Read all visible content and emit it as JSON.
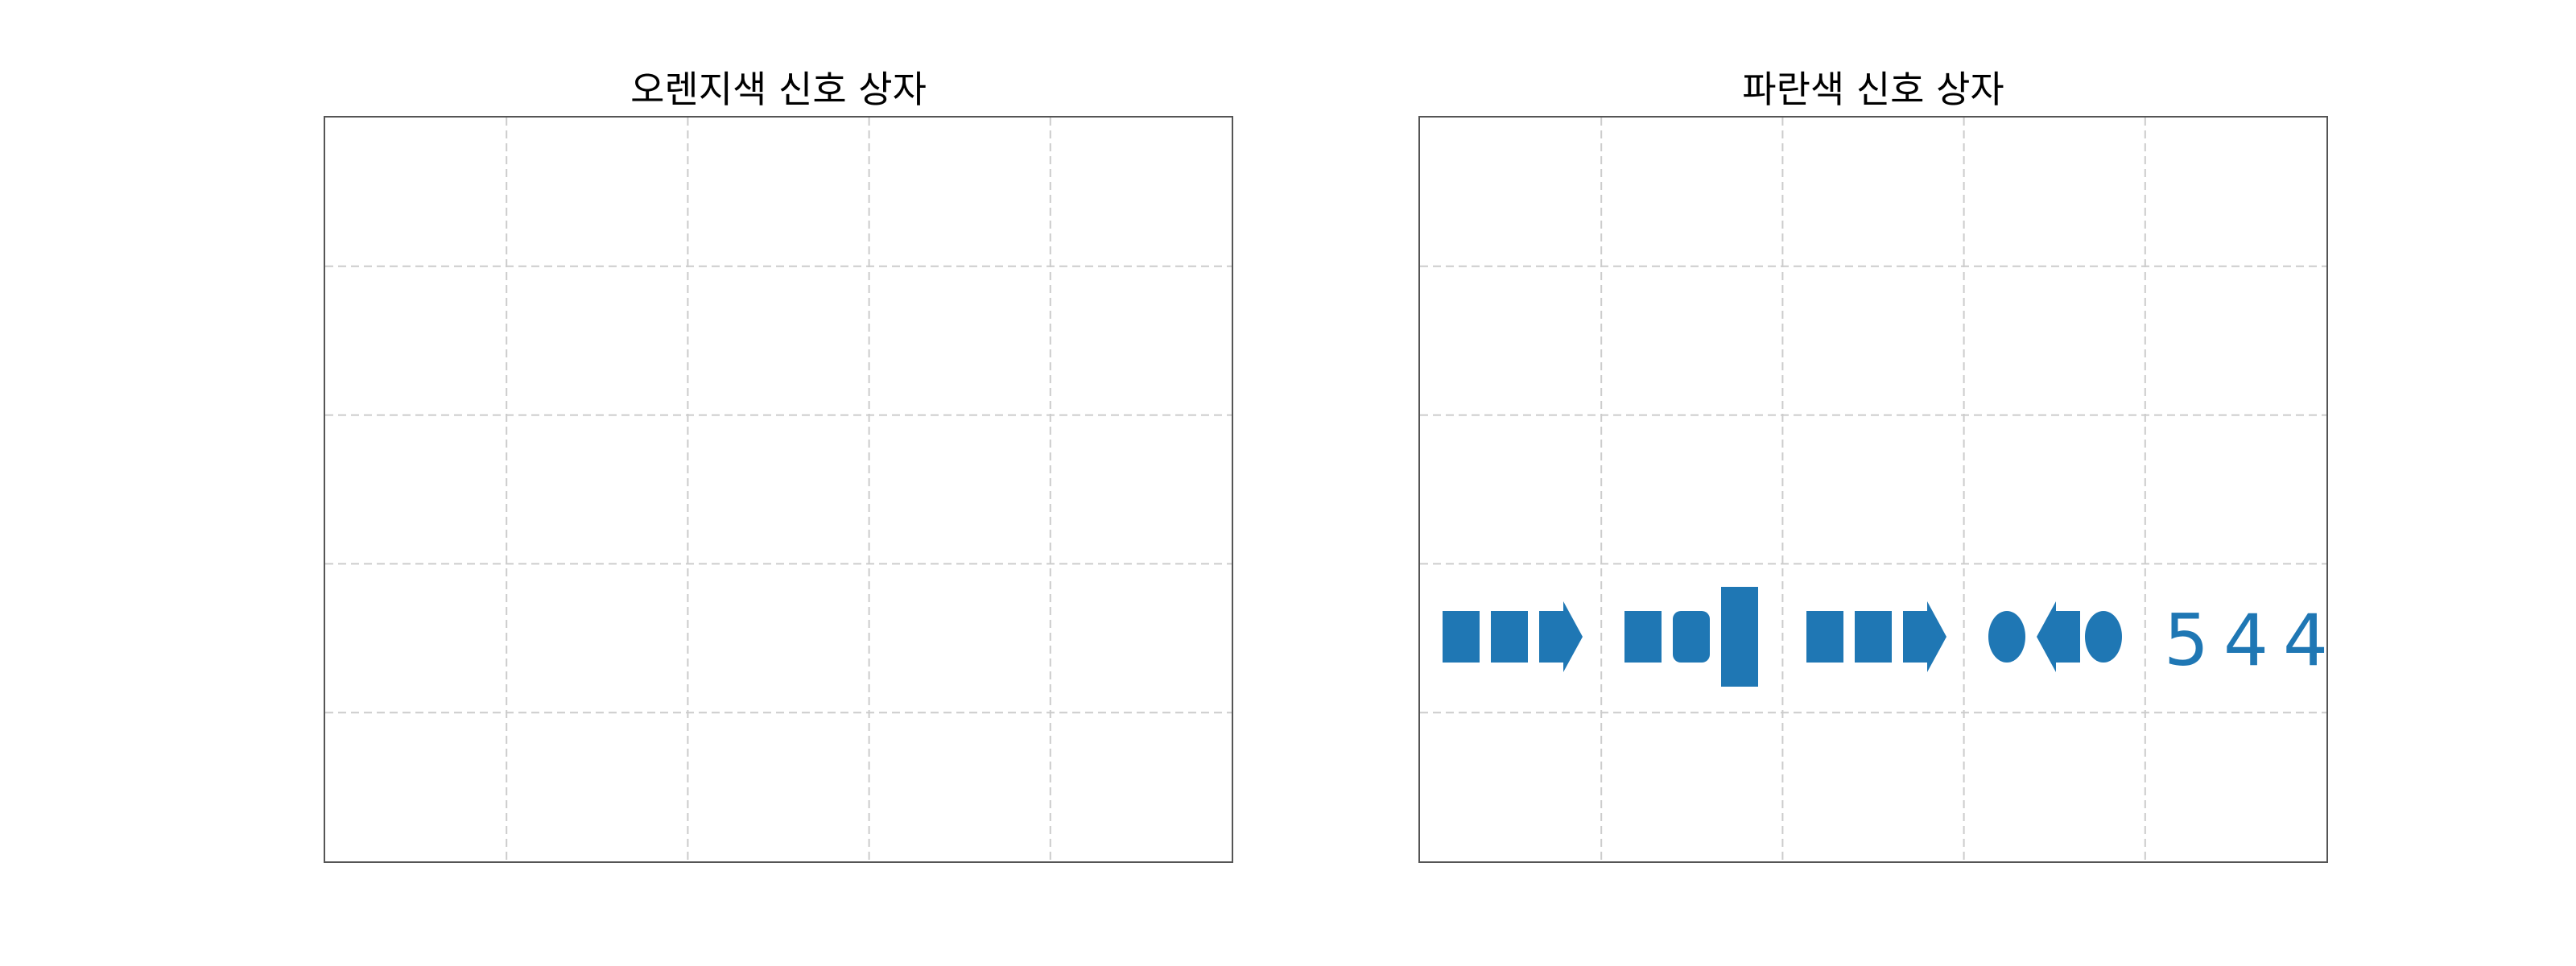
{
  "colors": {
    "signal": "#1f77b4",
    "grid": "#cccccc",
    "frame": "#555555"
  },
  "panels": [
    {
      "title": "오렌지색 신호 상자",
      "groups": [],
      "label": ""
    },
    {
      "title": "파란색 신호 상자",
      "groups": [
        [
          "square",
          "square",
          "arrow-right"
        ],
        [
          "square",
          "rounded-square",
          "tall-bar"
        ],
        [
          "square",
          "square",
          "arrow-right"
        ],
        [
          "circle",
          "arrow-left",
          "circle"
        ]
      ],
      "label": "544"
    }
  ]
}
